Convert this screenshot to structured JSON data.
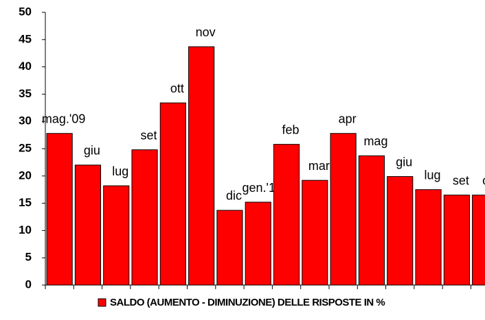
{
  "chart_data": {
    "type": "bar",
    "categories": [
      "mag.'09",
      "giu",
      "lug",
      "set",
      "ott",
      "nov",
      "dic",
      "gen.'10",
      "feb",
      "mar",
      "apr",
      "mag",
      "giu",
      "lug",
      "set",
      "ott"
    ],
    "series": [
      {
        "name": "SALDO (AUMENTO - DIMINUZIONE) DELLE RISPOSTE IN %",
        "color": "#ff0000",
        "values": [
          27.8,
          22,
          18.2,
          24.8,
          33.4,
          43.7,
          13.7,
          15.2,
          25.8,
          19.2,
          27.8,
          23.7,
          19.9,
          17.5,
          16.5,
          16.5
        ]
      }
    ],
    "ylim": [
      0,
      50
    ],
    "yticks": [
      0,
      5,
      10,
      15,
      20,
      25,
      30,
      35,
      40,
      45,
      50
    ],
    "grid": false,
    "legend": "bottom"
  }
}
